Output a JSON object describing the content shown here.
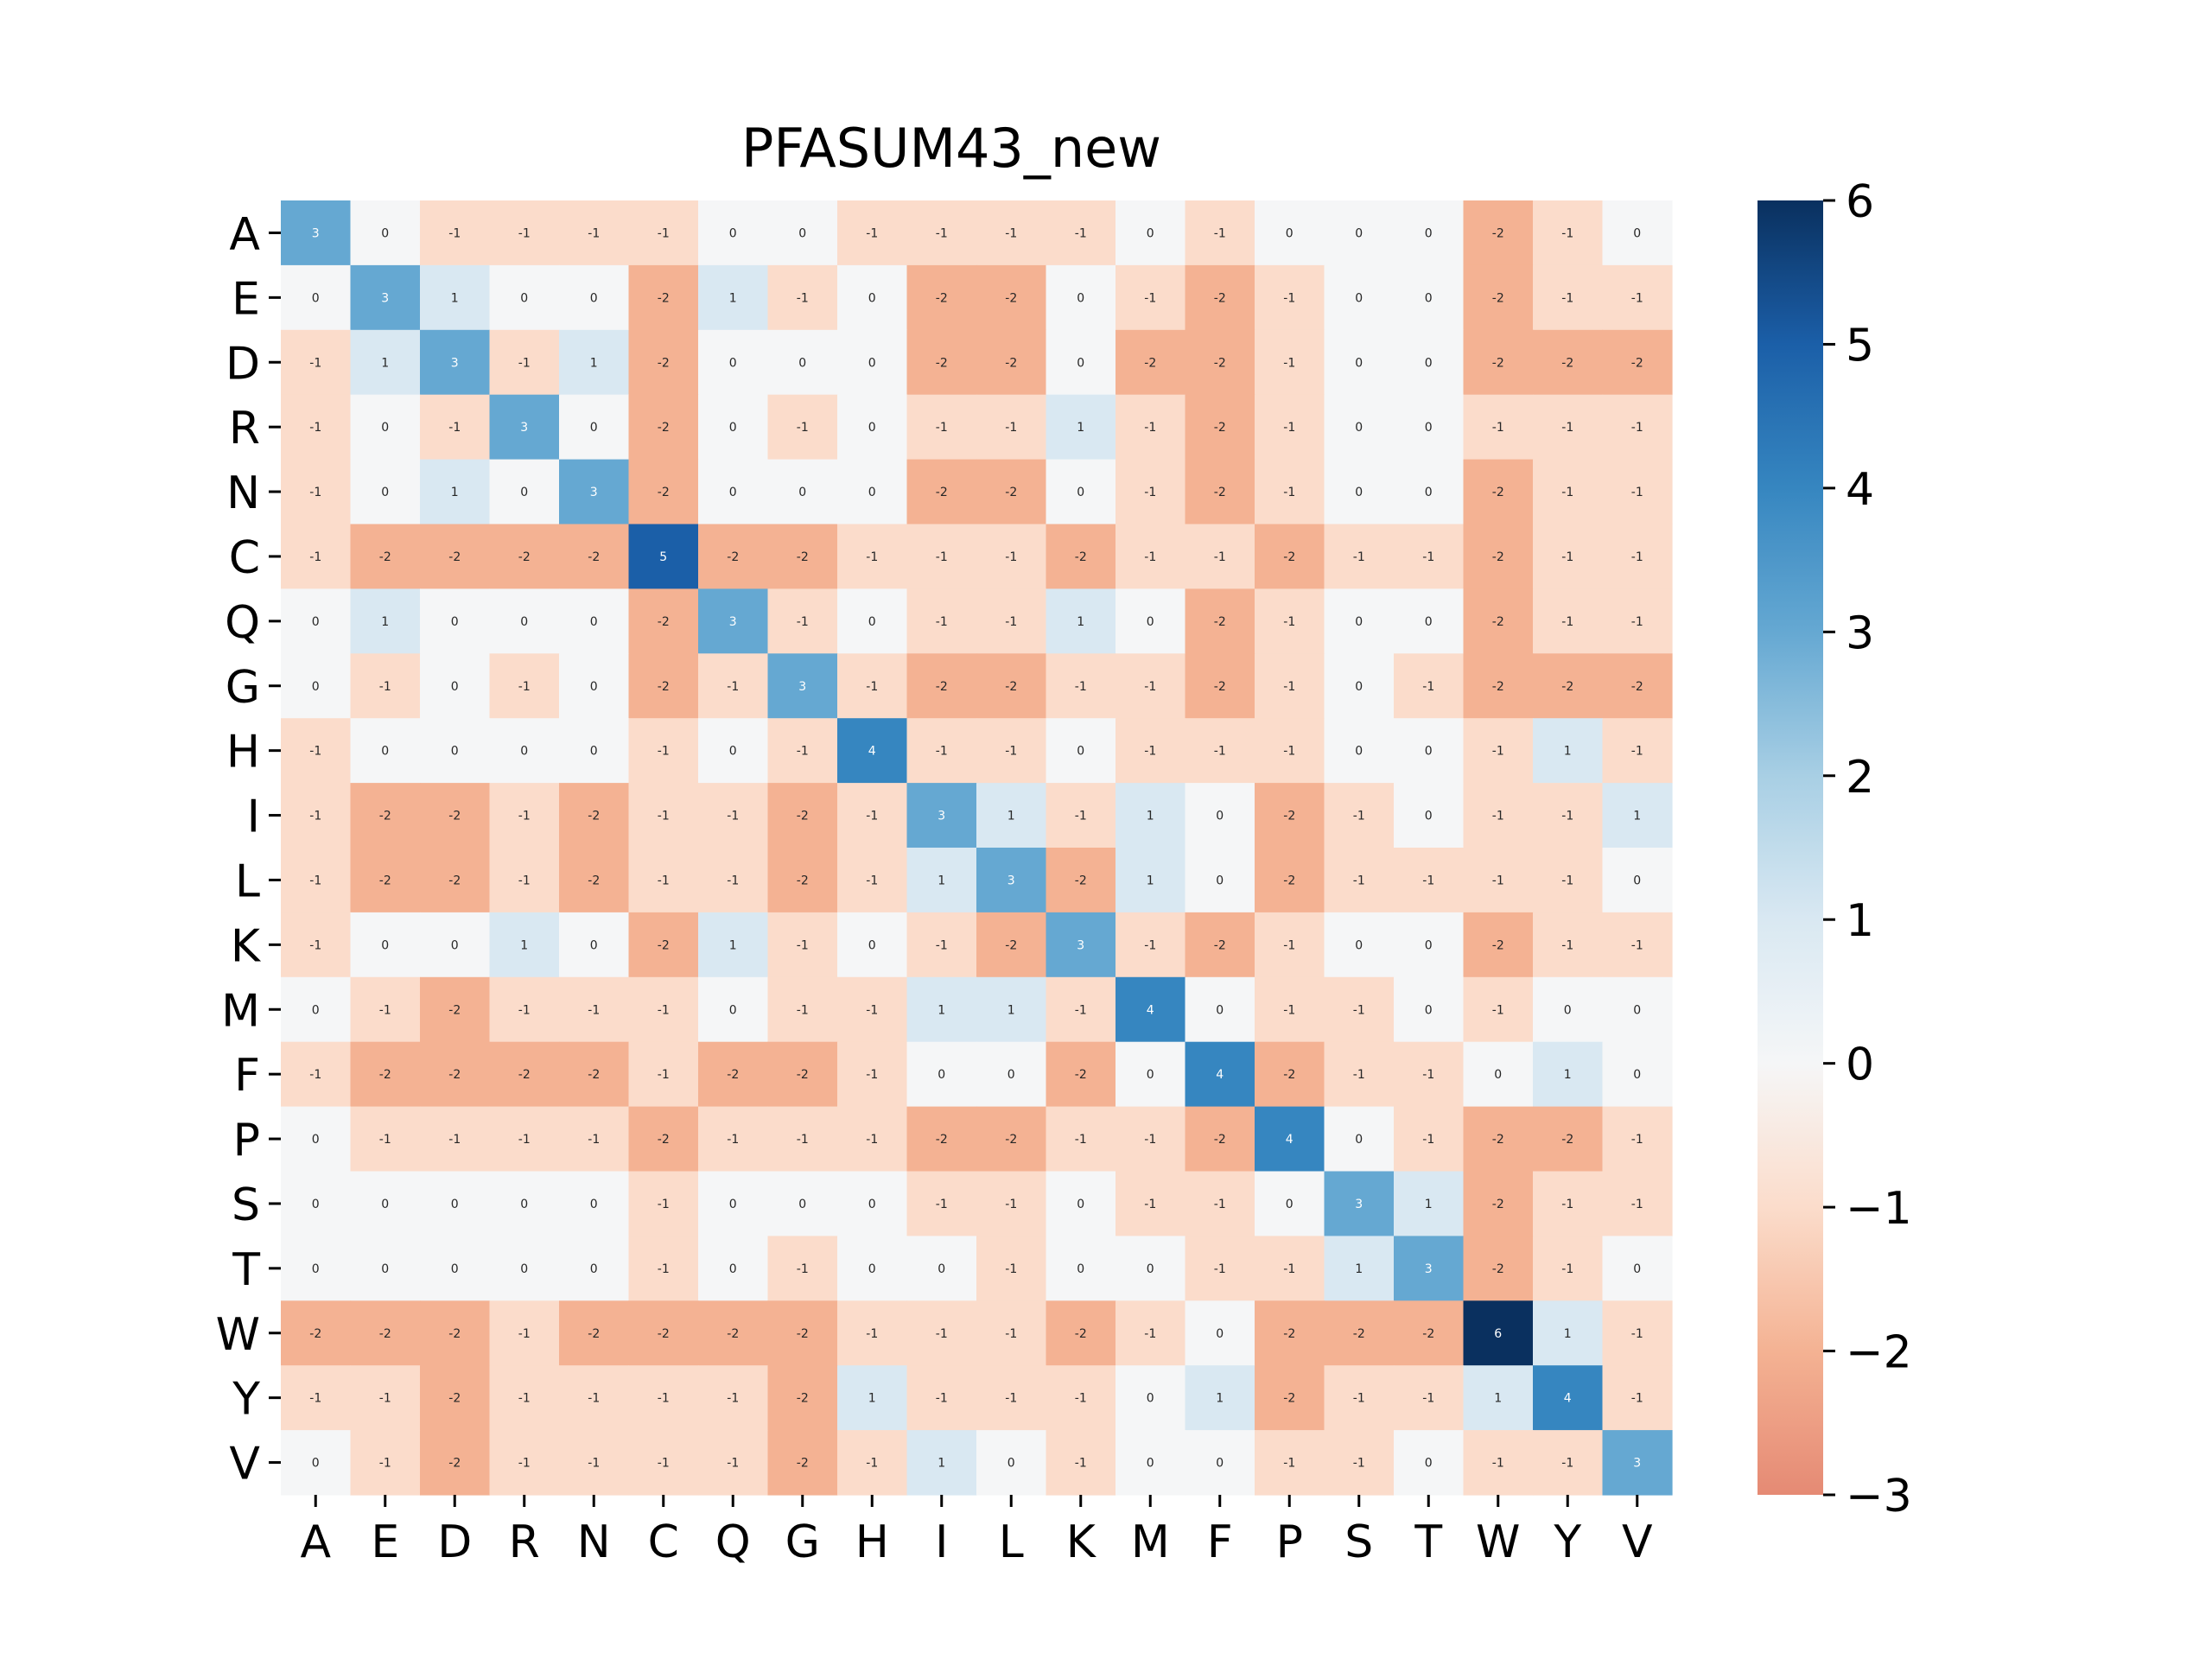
{
  "chart_data": {
    "type": "heatmap",
    "title": "PFASUM43_new",
    "xlabel": "",
    "ylabel": "",
    "x_labels": [
      "A",
      "E",
      "D",
      "R",
      "N",
      "C",
      "Q",
      "G",
      "H",
      "I",
      "L",
      "K",
      "M",
      "F",
      "P",
      "S",
      "T",
      "W",
      "Y",
      "V"
    ],
    "y_labels": [
      "A",
      "E",
      "D",
      "R",
      "N",
      "C",
      "Q",
      "G",
      "H",
      "I",
      "L",
      "K",
      "M",
      "F",
      "P",
      "S",
      "T",
      "W",
      "Y",
      "V"
    ],
    "values": [
      [
        3,
        0,
        -1,
        -1,
        -1,
        -1,
        0,
        0,
        -1,
        -1,
        -1,
        -1,
        0,
        -1,
        0,
        0,
        0,
        -2,
        -1,
        0
      ],
      [
        0,
        3,
        1,
        0,
        0,
        -2,
        1,
        -1,
        0,
        -2,
        -2,
        0,
        -1,
        -2,
        -1,
        0,
        0,
        -2,
        -1,
        -1
      ],
      [
        -1,
        1,
        3,
        -1,
        1,
        -2,
        0,
        0,
        0,
        -2,
        -2,
        0,
        -2,
        -2,
        -1,
        0,
        0,
        -2,
        -2,
        -2
      ],
      [
        -1,
        0,
        -1,
        3,
        0,
        -2,
        0,
        -1,
        0,
        -1,
        -1,
        1,
        -1,
        -2,
        -1,
        0,
        0,
        -1,
        -1,
        -1
      ],
      [
        -1,
        0,
        1,
        0,
        3,
        -2,
        0,
        0,
        0,
        -2,
        -2,
        0,
        -1,
        -2,
        -1,
        0,
        0,
        -2,
        -1,
        -1
      ],
      [
        -1,
        -2,
        -2,
        -2,
        -2,
        5,
        -2,
        -2,
        -1,
        -1,
        -1,
        -2,
        -1,
        -1,
        -2,
        -1,
        -1,
        -2,
        -1,
        -1
      ],
      [
        0,
        1,
        0,
        0,
        0,
        -2,
        3,
        -1,
        0,
        -1,
        -1,
        1,
        0,
        -2,
        -1,
        0,
        0,
        -2,
        -1,
        -1
      ],
      [
        0,
        -1,
        0,
        -1,
        0,
        -2,
        -1,
        3,
        -1,
        -2,
        -2,
        -1,
        -1,
        -2,
        -1,
        0,
        -1,
        -2,
        -2,
        -2
      ],
      [
        -1,
        0,
        0,
        0,
        0,
        -1,
        0,
        -1,
        4,
        -1,
        -1,
        0,
        -1,
        -1,
        -1,
        0,
        0,
        -1,
        1,
        -1
      ],
      [
        -1,
        -2,
        -2,
        -1,
        -2,
        -1,
        -1,
        -2,
        -1,
        3,
        1,
        -1,
        1,
        0,
        -2,
        -1,
        0,
        -1,
        -1,
        1
      ],
      [
        -1,
        -2,
        -2,
        -1,
        -2,
        -1,
        -1,
        -2,
        -1,
        1,
        3,
        -2,
        1,
        0,
        -2,
        -1,
        -1,
        -1,
        -1,
        0
      ],
      [
        -1,
        0,
        0,
        1,
        0,
        -2,
        1,
        -1,
        0,
        -1,
        -2,
        3,
        -1,
        -2,
        -1,
        0,
        0,
        -2,
        -1,
        -1
      ],
      [
        0,
        -1,
        -2,
        -1,
        -1,
        -1,
        0,
        -1,
        -1,
        1,
        1,
        -1,
        4,
        0,
        -1,
        -1,
        0,
        -1,
        0,
        0
      ],
      [
        -1,
        -2,
        -2,
        -2,
        -2,
        -1,
        -2,
        -2,
        -1,
        0,
        0,
        -2,
        0,
        4,
        -2,
        -1,
        -1,
        0,
        1,
        0
      ],
      [
        0,
        -1,
        -1,
        -1,
        -1,
        -2,
        -1,
        -1,
        -1,
        -2,
        -2,
        -1,
        -1,
        -2,
        4,
        0,
        -1,
        -2,
        -2,
        -1
      ],
      [
        0,
        0,
        0,
        0,
        0,
        -1,
        0,
        0,
        0,
        -1,
        -1,
        0,
        -1,
        -1,
        0,
        3,
        1,
        -2,
        -1,
        -1
      ],
      [
        0,
        0,
        0,
        0,
        0,
        -1,
        0,
        -1,
        0,
        0,
        -1,
        0,
        0,
        -1,
        -1,
        1,
        3,
        -2,
        -1,
        0
      ],
      [
        -2,
        -2,
        -2,
        -1,
        -2,
        -2,
        -2,
        -2,
        -1,
        -1,
        -1,
        -2,
        -1,
        0,
        -2,
        -2,
        -2,
        6,
        1,
        -1
      ],
      [
        -1,
        -1,
        -2,
        -1,
        -1,
        -1,
        -1,
        -2,
        1,
        -1,
        -1,
        -1,
        0,
        1,
        -2,
        -1,
        -1,
        1,
        4,
        -1
      ],
      [
        0,
        -1,
        -2,
        -1,
        -1,
        -1,
        -1,
        -2,
        -1,
        1,
        0,
        -1,
        0,
        0,
        -1,
        -1,
        0,
        -1,
        -1,
        3
      ]
    ],
    "color_scale": {
      "min": -3,
      "max": 6,
      "center": 0,
      "ticks": [
        6,
        5,
        4,
        3,
        2,
        1,
        0,
        -1,
        -2,
        -3
      ],
      "tick_labels": [
        "6",
        "5",
        "4",
        "3",
        "2",
        "1",
        "0",
        "−1",
        "−2",
        "−3"
      ],
      "colors": {
        "-3": "#e58a74",
        "-2": "#f4b293",
        "-1": "#fbdccb",
        "0": "#f5f6f7",
        "1": "#d9e8f2",
        "2": "#a8cfe4",
        "3": "#65a8d2",
        "4": "#3686c0",
        "5": "#1b5fa8",
        "6": "#0a305f"
      }
    },
    "grid": false,
    "legend": "colorbar-right"
  }
}
